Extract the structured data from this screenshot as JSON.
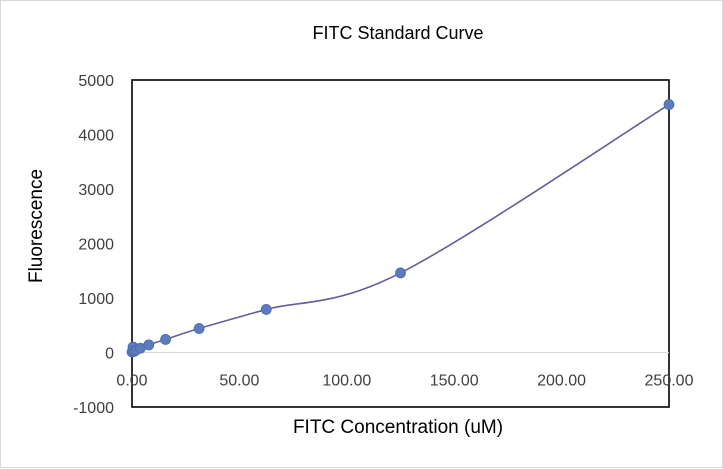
{
  "chart_data": {
    "type": "scatter",
    "title": "FITC Standard Curve",
    "xlabel": "FITC Concentration (uM)",
    "ylabel": "Fluorescence",
    "xlim": [
      0,
      250
    ],
    "ylim": [
      -1000,
      5000
    ],
    "xticks": [
      0,
      50,
      100,
      150,
      200,
      250
    ],
    "xtick_labels": [
      "0.00",
      "50.00",
      "100.00",
      "150.00",
      "200.00",
      "250.00"
    ],
    "yticks": [
      -1000,
      0,
      1000,
      2000,
      3000,
      4000,
      5000
    ],
    "ytick_labels": [
      "-1000",
      "0",
      "1000",
      "2000",
      "3000",
      "4000",
      "5000"
    ],
    "grid": false,
    "legend": "none",
    "series": [
      {
        "name": "FITC",
        "smooth": true,
        "x": [
          0,
          0.49,
          0.98,
          1.95,
          3.91,
          7.81,
          15.63,
          31.25,
          62.5,
          125,
          250
        ],
        "y": [
          10,
          100,
          20,
          45,
          80,
          140,
          240,
          440,
          790,
          1460,
          4550
        ],
        "error": [
          40,
          40,
          40,
          40,
          40,
          40,
          50,
          50,
          60,
          60,
          60
        ]
      }
    ],
    "colors": {
      "marker": "#5b7dc0",
      "line": "#6a5a9c",
      "error_bar": "#404040",
      "axis": "#000000"
    }
  }
}
